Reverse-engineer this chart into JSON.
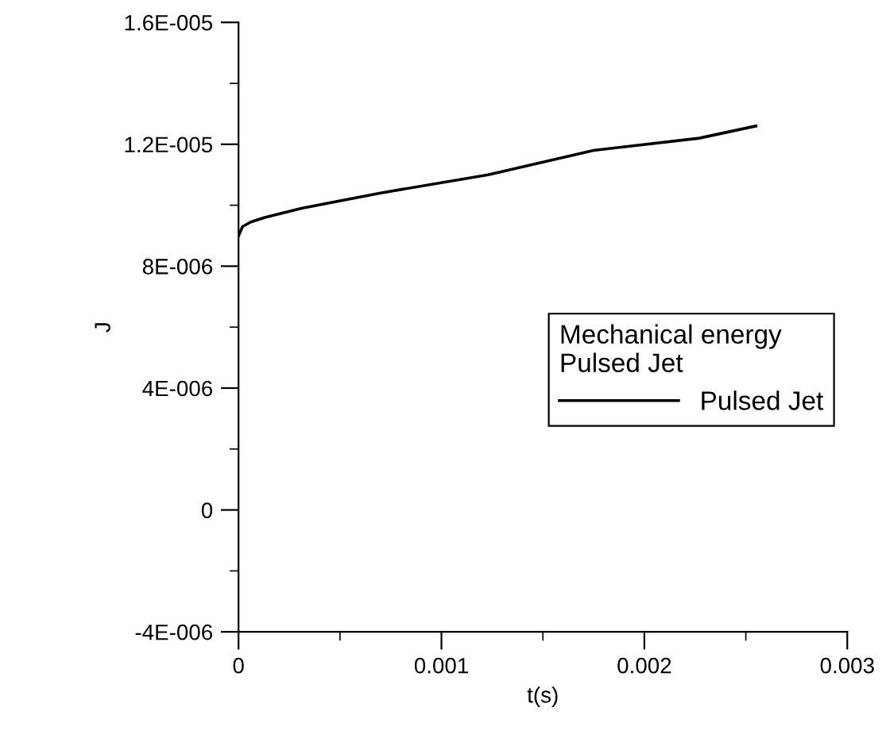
{
  "chart_data": {
    "type": "line",
    "xlabel": "t(s)",
    "ylabel": "J",
    "legend_title": "Mechanical energy\nPulsed Jet",
    "legend": "right",
    "grid": false,
    "marker": "none",
    "line_style": "solid",
    "xlim": [
      0,
      0.003
    ],
    "xticks": [
      0,
      0.001,
      0.002,
      0.003
    ],
    "ylim": [
      -4e-06,
      1.6e-05
    ],
    "yticks": [
      {
        "value": -4e-06,
        "label": "-4E-006"
      },
      {
        "value": 0,
        "label": "0"
      },
      {
        "value": 4e-06,
        "label": "4E-006"
      },
      {
        "value": 8e-06,
        "label": "8E-006"
      },
      {
        "value": 1.2e-05,
        "label": "1.2E-005"
      },
      {
        "value": 1.6e-05,
        "label": "1.6E-005"
      }
    ],
    "series": [
      {
        "name": "Pulsed Jet",
        "color": "#000000",
        "x": [
          0,
          2e-05,
          6e-05,
          0.00013,
          0.00031,
          0.0007,
          0.00123,
          0.00175,
          0.00227,
          0.00255
        ],
        "values": [
          9e-06,
          9.3e-06,
          9.45e-06,
          9.6e-06,
          9.9e-06,
          1.04e-05,
          1.1e-05,
          1.18e-05,
          1.22e-05,
          1.26e-05
        ]
      }
    ]
  }
}
